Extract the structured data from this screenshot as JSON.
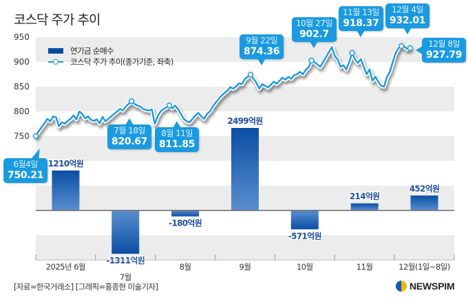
{
  "title": "코스닥 주가 추이",
  "legend": {
    "bar_label": "연기금 순매수",
    "line_label": "코스닥 주가 추이(종가기준, 좌축)"
  },
  "source": "[자료=한국거래소] [그래픽=홍종현 미술기자]",
  "logo_text": "NEWSPIM",
  "colors": {
    "line": "#1a9ae0",
    "bar_top": "#0a4ea3",
    "bar_bottom": "#5a8fcf",
    "callout": "#1a9ae0",
    "bar_label": "#1f4e9c",
    "band": "#ececec"
  },
  "callouts": [
    {
      "date": "6월4일",
      "value": "750.21"
    },
    {
      "date": "7월 18일",
      "value": "820.67"
    },
    {
      "date": "8월 11일",
      "value": "811.85"
    },
    {
      "date": "9월 22일",
      "value": "874.36"
    },
    {
      "date": "10월 27일",
      "value": "902.7"
    },
    {
      "date": "11월 13일",
      "value": "918.37"
    },
    {
      "date": "12월 4일",
      "value": "932.01"
    },
    {
      "date": "12월 8일",
      "value": "927.79"
    }
  ],
  "chart_data": [
    {
      "type": "line",
      "name": "코스닥 주가 추이(종가기준, 좌축)",
      "title": "코스닥 주가 추이",
      "ylabel": "",
      "ylim": [
        750,
        950
      ],
      "yticks": [
        "950",
        "900",
        "850",
        "800",
        "750"
      ],
      "x_range": [
        "2025-06-04",
        "2025-12-08"
      ],
      "values": [
        750.21,
        760,
        768,
        776,
        785,
        780,
        790,
        788,
        770,
        778,
        775,
        781,
        785,
        792,
        784,
        800,
        795,
        786,
        790,
        783,
        781,
        784,
        776,
        789,
        780,
        785,
        790,
        795,
        800,
        805,
        802,
        810,
        815,
        820.67,
        815,
        812,
        810,
        805,
        803,
        802,
        804,
        775,
        790,
        800,
        805,
        808,
        811.85,
        806,
        812,
        805,
        795,
        785,
        780,
        778,
        785,
        792,
        797,
        790,
        785,
        795,
        800,
        810,
        818,
        825,
        832,
        837,
        842,
        849,
        846,
        850,
        857,
        855,
        865,
        870,
        874.36,
        866,
        858,
        846,
        855,
        852,
        848,
        854,
        860,
        856,
        862,
        868,
        864,
        870,
        866,
        873,
        875,
        880,
        875,
        884,
        889,
        902.7,
        900,
        895,
        890,
        900,
        910,
        920,
        930,
        912,
        905,
        890,
        893,
        885,
        900,
        918.37,
        905,
        898,
        906,
        890,
        875,
        885,
        862,
        870,
        860,
        852,
        850,
        870,
        880,
        900,
        918,
        928,
        932.01,
        931,
        926,
        927.79
      ],
      "highlights": [
        {
          "date": "6월4일",
          "value": 750.21
        },
        {
          "date": "7월 18일",
          "value": 820.67
        },
        {
          "date": "8월 11일",
          "value": 811.85
        },
        {
          "date": "9월 22일",
          "value": 874.36
        },
        {
          "date": "10월 27일",
          "value": 902.7
        },
        {
          "date": "11월 13일",
          "value": 918.37
        },
        {
          "date": "12월 4일",
          "value": 932.01
        },
        {
          "date": "12월 8일",
          "value": 927.79
        }
      ]
    },
    {
      "type": "bar",
      "name": "연기금 순매수",
      "unit": "억원",
      "categories": [
        "2025년 6월",
        "7월",
        "8월",
        "9월",
        "10월",
        "11월",
        "12월(1일~8일)"
      ],
      "values": [
        1210,
        -1311,
        -180,
        2499,
        -571,
        214,
        452
      ],
      "labels": [
        "1210억원",
        "-1311억원",
        "-180억원",
        "2499억원",
        "-571억원",
        "214억원",
        "452억원"
      ]
    }
  ]
}
